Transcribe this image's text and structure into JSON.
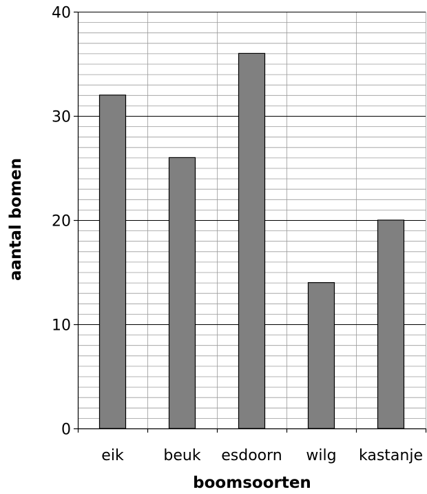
{
  "chart_data": {
    "type": "bar",
    "categories": [
      "eik",
      "beuk",
      "esdoorn",
      "wilg",
      "kastanje"
    ],
    "values": [
      32,
      26,
      36,
      14,
      20
    ],
    "title": "",
    "xlabel": "boomsoorten",
    "ylabel": "aantal bomen",
    "ylim": [
      0,
      40
    ],
    "yticks": [
      0,
      10,
      20,
      30,
      40
    ],
    "minor_step": 1,
    "grid": true,
    "bar_color": "#808080",
    "bar_edge_color": "#000000"
  }
}
